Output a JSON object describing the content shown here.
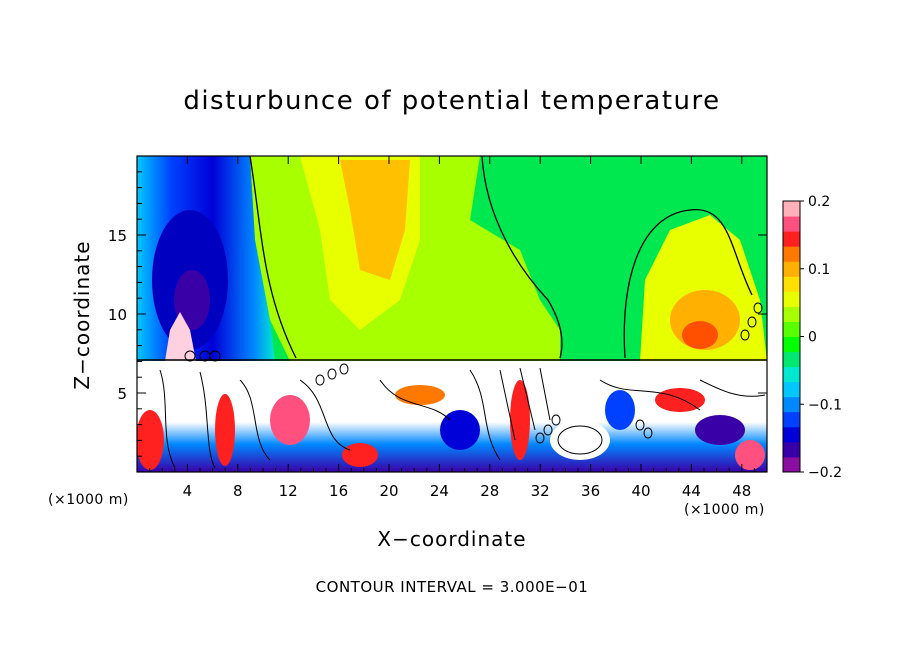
{
  "chart_data": {
    "type": "heatmap",
    "title": "disturbunce of potential temperature",
    "xlabel": "X−coordinate",
    "ylabel": "Z−coordinate",
    "x_unit_label": "(×1000 m)",
    "x_unit_label_right": "(×1000 m)",
    "x_ticks": [
      "4",
      "8",
      "12",
      "16",
      "20",
      "24",
      "28",
      "32",
      "36",
      "40",
      "44",
      "48"
    ],
    "x_tick_values": [
      4,
      8,
      12,
      16,
      20,
      24,
      28,
      32,
      36,
      40,
      44,
      48
    ],
    "xlim": [
      0,
      50
    ],
    "y_ticks": [
      "5",
      "10",
      "15"
    ],
    "y_tick_values": [
      5,
      10,
      15
    ],
    "ylim": [
      0,
      20
    ],
    "colorbar": {
      "ticks": [
        "0.2",
        "0.1",
        "0",
        "−0.1",
        "−0.2"
      ],
      "tick_values": [
        0.2,
        0.1,
        0,
        -0.1,
        -0.2
      ],
      "range": [
        -0.2,
        0.2
      ],
      "colors": [
        "#8a0fa0",
        "#3a00a8",
        "#0000d8",
        "#0040ff",
        "#0088ff",
        "#00c8ff",
        "#00e8d0",
        "#00e870",
        "#00ff00",
        "#58ff00",
        "#a8ff00",
        "#e8ff00",
        "#ffe000",
        "#ffb000",
        "#ff7800",
        "#ff2020",
        "#ff5080",
        "#ffb0b8"
      ]
    },
    "annotation": "CONTOUR INTERVAL = 3.000E−01",
    "regions": [
      {
        "x": [
          0,
          8
        ],
        "z": [
          10,
          19
        ],
        "value": -0.16
      },
      {
        "x": [
          8,
          20
        ],
        "z": [
          8,
          19
        ],
        "value": 0.05
      },
      {
        "x": [
          20,
          30
        ],
        "z": [
          7.5,
          19
        ],
        "value": 0.09
      },
      {
        "x": [
          30,
          39
        ],
        "z": [
          7.5,
          19
        ],
        "value": 0.0
      },
      {
        "x": [
          39,
          50
        ],
        "z": [
          7.5,
          16
        ],
        "value": 0.07
      },
      {
        "x": [
          0,
          50
        ],
        "z": [
          0,
          7.3
        ],
        "value": -0.05
      }
    ],
    "tropopause_z": 7.3
  }
}
